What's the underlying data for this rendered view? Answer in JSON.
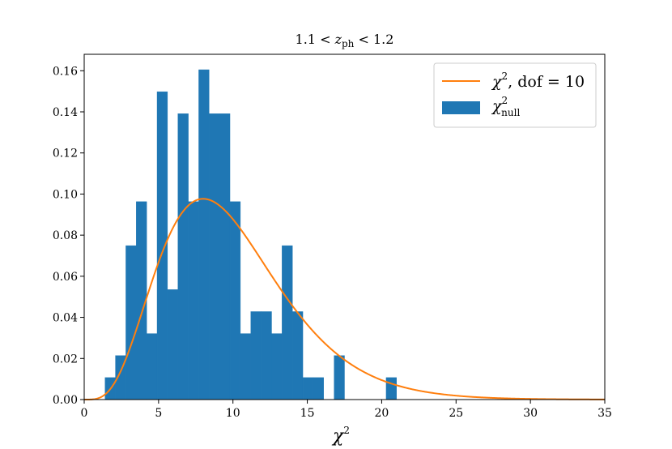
{
  "chart_data": {
    "type": "bar",
    "title": "1.1 < z_ph < 1.2",
    "title_parts": {
      "pre": "1.1 < ",
      "var": "z",
      "sub": "ph",
      "post": " < 1.2"
    },
    "xlabel": "χ²",
    "xlabel_parts": {
      "base": "χ",
      "sup": "2"
    },
    "xlim": [
      0,
      35
    ],
    "ylim": [
      0,
      0.168
    ],
    "xticks": [
      0,
      5,
      10,
      15,
      20,
      25,
      30,
      35
    ],
    "xtick_labels": [
      "0",
      "5",
      "10",
      "15",
      "20",
      "25",
      "30",
      "35"
    ],
    "yticks": [
      0.0,
      0.02,
      0.04,
      0.06,
      0.08,
      0.1,
      0.12,
      0.14,
      0.16
    ],
    "ytick_labels": [
      "0.00",
      "0.02",
      "0.04",
      "0.06",
      "0.08",
      "0.10",
      "0.12",
      "0.14",
      "0.16"
    ],
    "grid": false,
    "legend_position": "top-right",
    "colors": {
      "histogram": "#1f77b4",
      "curve": "#ff7f0e",
      "axes": "#000000"
    },
    "series": [
      {
        "name": "χ²_null",
        "legend_parts": {
          "base": "χ",
          "sup": "2",
          "sub": "null"
        },
        "kind": "histogram",
        "bin_edges": [
          1.4,
          2.1,
          2.8,
          3.5,
          4.2,
          4.9,
          5.6,
          6.3,
          7.0,
          7.7,
          8.4,
          9.1,
          9.8,
          10.5,
          11.2,
          11.9,
          12.6,
          13.3,
          14.0,
          14.7,
          15.4,
          16.1,
          16.8,
          17.5,
          18.2,
          18.9,
          19.6,
          20.3,
          21.0
        ],
        "values": [
          0.0107,
          0.0214,
          0.0749,
          0.0963,
          0.0321,
          0.1498,
          0.0535,
          0.1391,
          0.0963,
          0.1605,
          0.1391,
          0.1391,
          0.0963,
          0.0321,
          0.0428,
          0.0428,
          0.0321,
          0.0749,
          0.0428,
          0.0107,
          0.0107,
          0.0,
          0.0214,
          0.0,
          0.0,
          0.0,
          0.0,
          0.0107
        ]
      },
      {
        "name": "χ², dof = 10",
        "legend_parts": {
          "base": "χ",
          "sup": "2",
          "rest": ", dof = 10"
        },
        "kind": "line",
        "dof": 10,
        "x_range": [
          0,
          35
        ]
      }
    ]
  }
}
